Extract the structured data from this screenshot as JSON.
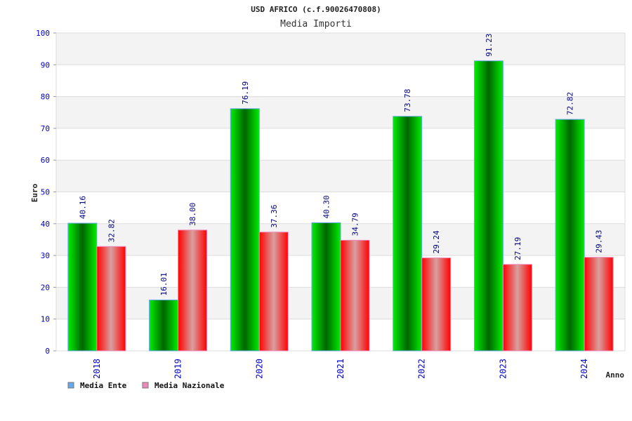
{
  "chart_data": {
    "type": "bar",
    "title": "USD AFRICO (c.f.90026470808)",
    "subtitle": "Media Importi",
    "xlabel": "Anno",
    "ylabel": "Euro",
    "ylim": [
      0,
      100
    ],
    "yticks": [
      "0",
      "10",
      "20",
      "30",
      "40",
      "50",
      "60",
      "70",
      "80",
      "90",
      "100"
    ],
    "categories": [
      "2018",
      "2019",
      "2020",
      "2021",
      "2022",
      "2023",
      "2024"
    ],
    "series": [
      {
        "name": "Media Ente",
        "values": [
          40.16,
          16.01,
          76.19,
          40.3,
          73.78,
          91.23,
          72.82
        ],
        "labels": [
          "40.16",
          "16.01",
          "76.19",
          "40.30",
          "73.78",
          "91.23",
          "72.82"
        ],
        "color": "#00cc00",
        "legend_color": "#66aaee"
      },
      {
        "name": "Media Nazionale",
        "values": [
          32.82,
          38.0,
          37.36,
          34.79,
          29.24,
          27.19,
          29.43
        ],
        "labels": [
          "32.82",
          "38.00",
          "37.36",
          "34.79",
          "29.24",
          "27.19",
          "29.43"
        ],
        "color": "#ff1111",
        "legend_color": "#ee88bb"
      }
    ],
    "grid": true,
    "legend_position": "bottom-left"
  }
}
